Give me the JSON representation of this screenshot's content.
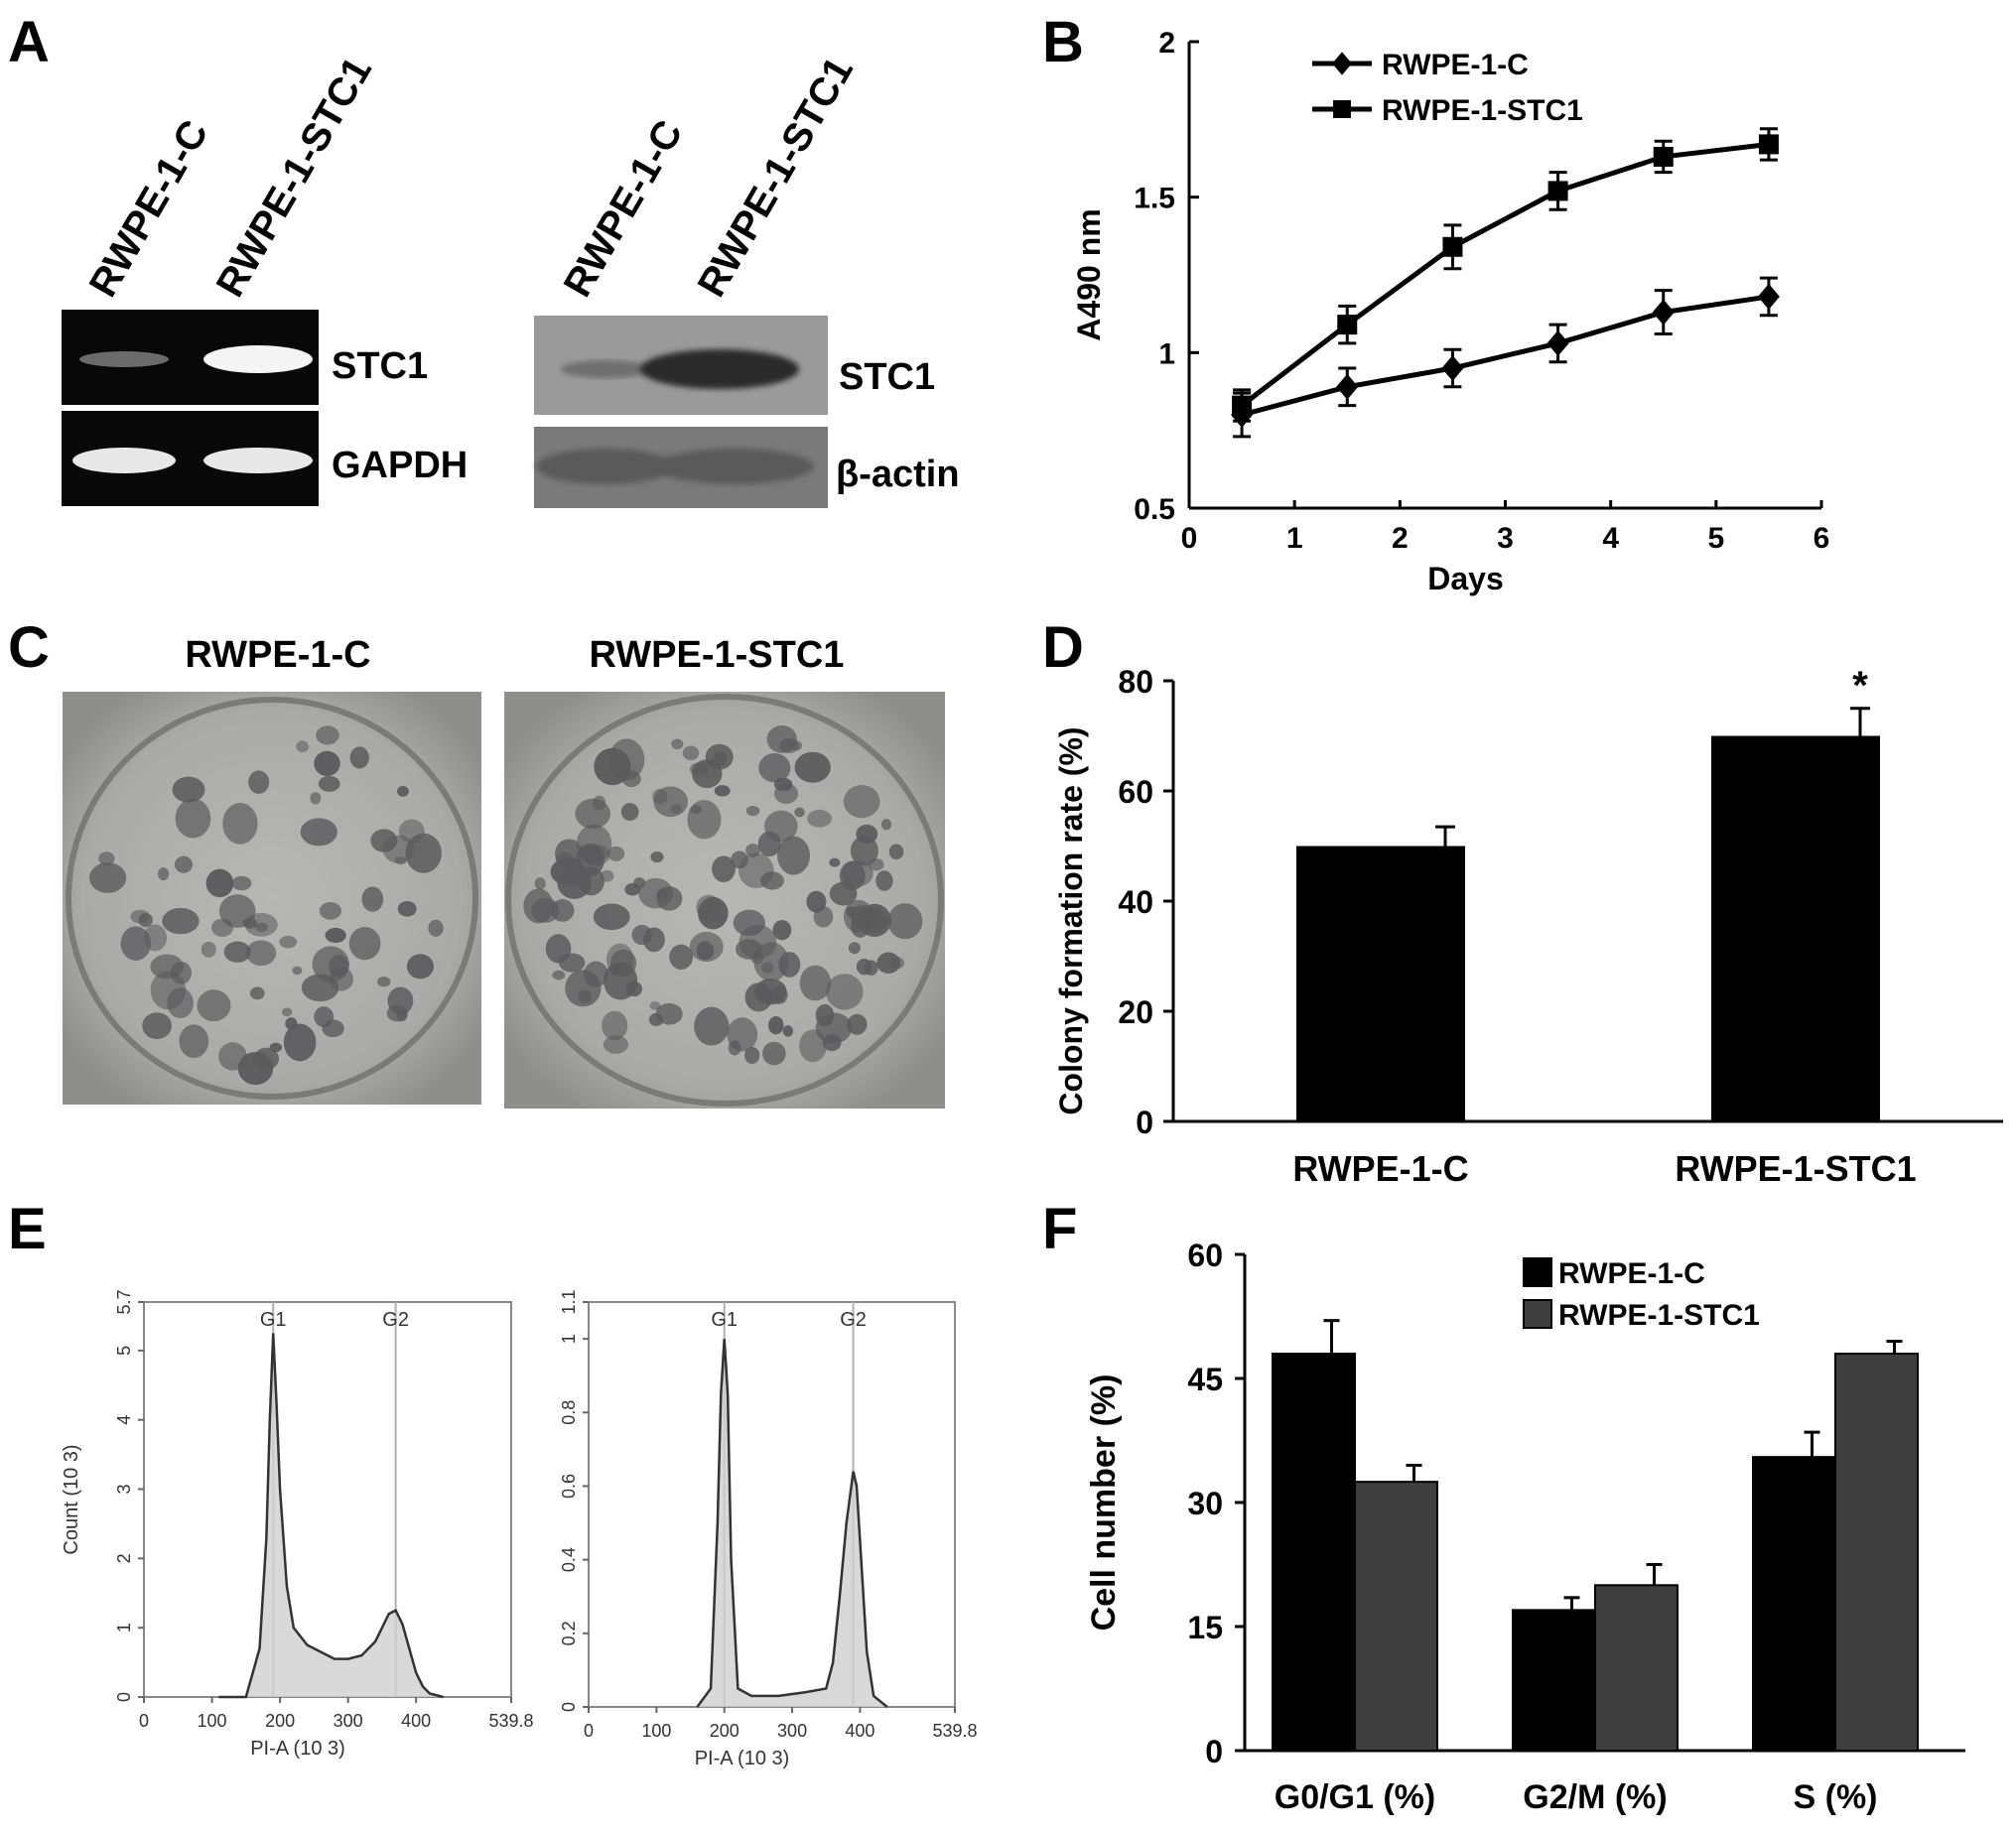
{
  "panel_letters": {
    "a": "A",
    "b": "B",
    "c": "C",
    "d": "D",
    "e": "E",
    "f": "F"
  },
  "panel_a": {
    "left_gel": {
      "lanes": [
        "RWPE-1-C",
        "RWPE-1-STC1"
      ],
      "bands": [
        {
          "label": "STC1",
          "intensity": [
            0.3,
            1.0
          ]
        },
        {
          "label": "GAPDH",
          "intensity": [
            0.9,
            0.9
          ]
        }
      ]
    },
    "right_blot": {
      "lanes": [
        "RWPE-1-C",
        "RWPE-1-STC1"
      ],
      "bands": [
        {
          "label": "STC1",
          "intensity": [
            0.15,
            0.75
          ]
        },
        {
          "label": "β-actin",
          "intensity": [
            0.3,
            0.3
          ]
        }
      ]
    }
  },
  "panel_c": {
    "labels": [
      "RWPE-1-C",
      "RWPE-1-STC1"
    ]
  },
  "chart_data": [
    {
      "panel": "B",
      "type": "line",
      "xlabel": "Days",
      "ylabel": "A490 nm",
      "xlim": [
        0,
        6
      ],
      "ylim": [
        0.5,
        2
      ],
      "xticks": [
        "0",
        "1",
        "2",
        "3",
        "4",
        "5",
        "6"
      ],
      "yticks": [
        "0.5",
        "1",
        "1.5",
        "2"
      ],
      "legend_position": "top-left",
      "series": [
        {
          "name": "RWPE-1-C",
          "marker": "diamond",
          "x": [
            0.5,
            1.5,
            2.5,
            3.5,
            4.5,
            5.5
          ],
          "y": [
            0.8,
            0.89,
            0.95,
            1.03,
            1.13,
            1.18
          ],
          "err": [
            0.07,
            0.06,
            0.06,
            0.06,
            0.07,
            0.06
          ]
        },
        {
          "name": "RWPE-1-STC1",
          "marker": "square",
          "x": [
            0.5,
            1.5,
            2.5,
            3.5,
            4.5,
            5.5
          ],
          "y": [
            0.83,
            1.09,
            1.34,
            1.52,
            1.63,
            1.67
          ],
          "err": [
            0.05,
            0.06,
            0.07,
            0.06,
            0.05,
            0.05
          ]
        }
      ]
    },
    {
      "panel": "D",
      "type": "bar",
      "categories": [
        "RWPE-1-C",
        "RWPE-1-STC1"
      ],
      "values": [
        50,
        70
      ],
      "err": [
        3.5,
        5
      ],
      "annotations": [
        "",
        "*"
      ],
      "ylabel": "Colony formation rate (%)",
      "ylim": [
        0,
        80
      ],
      "yticks": [
        "0",
        "20",
        "40",
        "60",
        "80"
      ],
      "bar_color": "#000000"
    },
    {
      "panel": "E",
      "type": "area",
      "charts": [
        {
          "xlabel": "PI-A (10 3)",
          "ylabel": "Count (10 3)",
          "xlim": [
            0,
            539.8
          ],
          "ylim": [
            0,
            5.7
          ],
          "xticks": [
            "0",
            "100",
            "200",
            "300",
            "400",
            "539.8"
          ],
          "yticks": [
            "0",
            "1",
            "2",
            "3",
            "4",
            "5",
            "5.7"
          ],
          "peak_labels": [
            "G1",
            "G2"
          ],
          "peak_x": [
            190,
            370
          ],
          "x": [
            110,
            150,
            170,
            180,
            185,
            190,
            195,
            200,
            210,
            220,
            240,
            260,
            280,
            300,
            320,
            340,
            350,
            360,
            370,
            380,
            390,
            400,
            410,
            420,
            440
          ],
          "y": [
            0,
            0,
            0.7,
            2.3,
            4.0,
            5.25,
            4.2,
            3.0,
            1.6,
            1.0,
            0.75,
            0.65,
            0.55,
            0.55,
            0.6,
            0.8,
            1.0,
            1.2,
            1.25,
            1.05,
            0.7,
            0.35,
            0.15,
            0.05,
            0
          ]
        },
        {
          "xlabel": "PI-A (10 3)",
          "ylabel": "",
          "xlim": [
            0,
            539.8
          ],
          "ylim": [
            0,
            1.1
          ],
          "xticks": [
            "0",
            "100",
            "200",
            "300",
            "400",
            "539.8"
          ],
          "yticks": [
            "0",
            "0.2",
            "0.4",
            "0.6",
            "0.8",
            "1",
            "1.1"
          ],
          "peak_labels": [
            "G1",
            "G2"
          ],
          "peak_x": [
            200,
            390
          ],
          "x": [
            160,
            180,
            190,
            195,
            200,
            205,
            210,
            220,
            240,
            280,
            320,
            350,
            360,
            370,
            380,
            390,
            395,
            400,
            410,
            420,
            440
          ],
          "y": [
            0,
            0.05,
            0.5,
            0.85,
            1.0,
            0.85,
            0.4,
            0.05,
            0.03,
            0.03,
            0.04,
            0.05,
            0.12,
            0.3,
            0.5,
            0.64,
            0.6,
            0.45,
            0.15,
            0.03,
            0
          ]
        }
      ]
    },
    {
      "panel": "F",
      "type": "bar",
      "categories": [
        "G0/G1 (%)",
        "G2/M (%)",
        "S (%)"
      ],
      "ylabel": "Cell number (%)",
      "ylim": [
        0,
        60
      ],
      "yticks": [
        "0",
        "15",
        "30",
        "45",
        "60"
      ],
      "legend_position": "top-right",
      "series": [
        {
          "name": "RWPE-1-C",
          "color": "#000000",
          "values": [
            48,
            17,
            35.5
          ],
          "err": [
            4,
            1.5,
            3
          ]
        },
        {
          "name": "RWPE-1-STC1",
          "color": "#3f3f3f",
          "values": [
            32.5,
            20,
            48
          ],
          "err": [
            2,
            2.5,
            1.5
          ]
        }
      ]
    }
  ]
}
